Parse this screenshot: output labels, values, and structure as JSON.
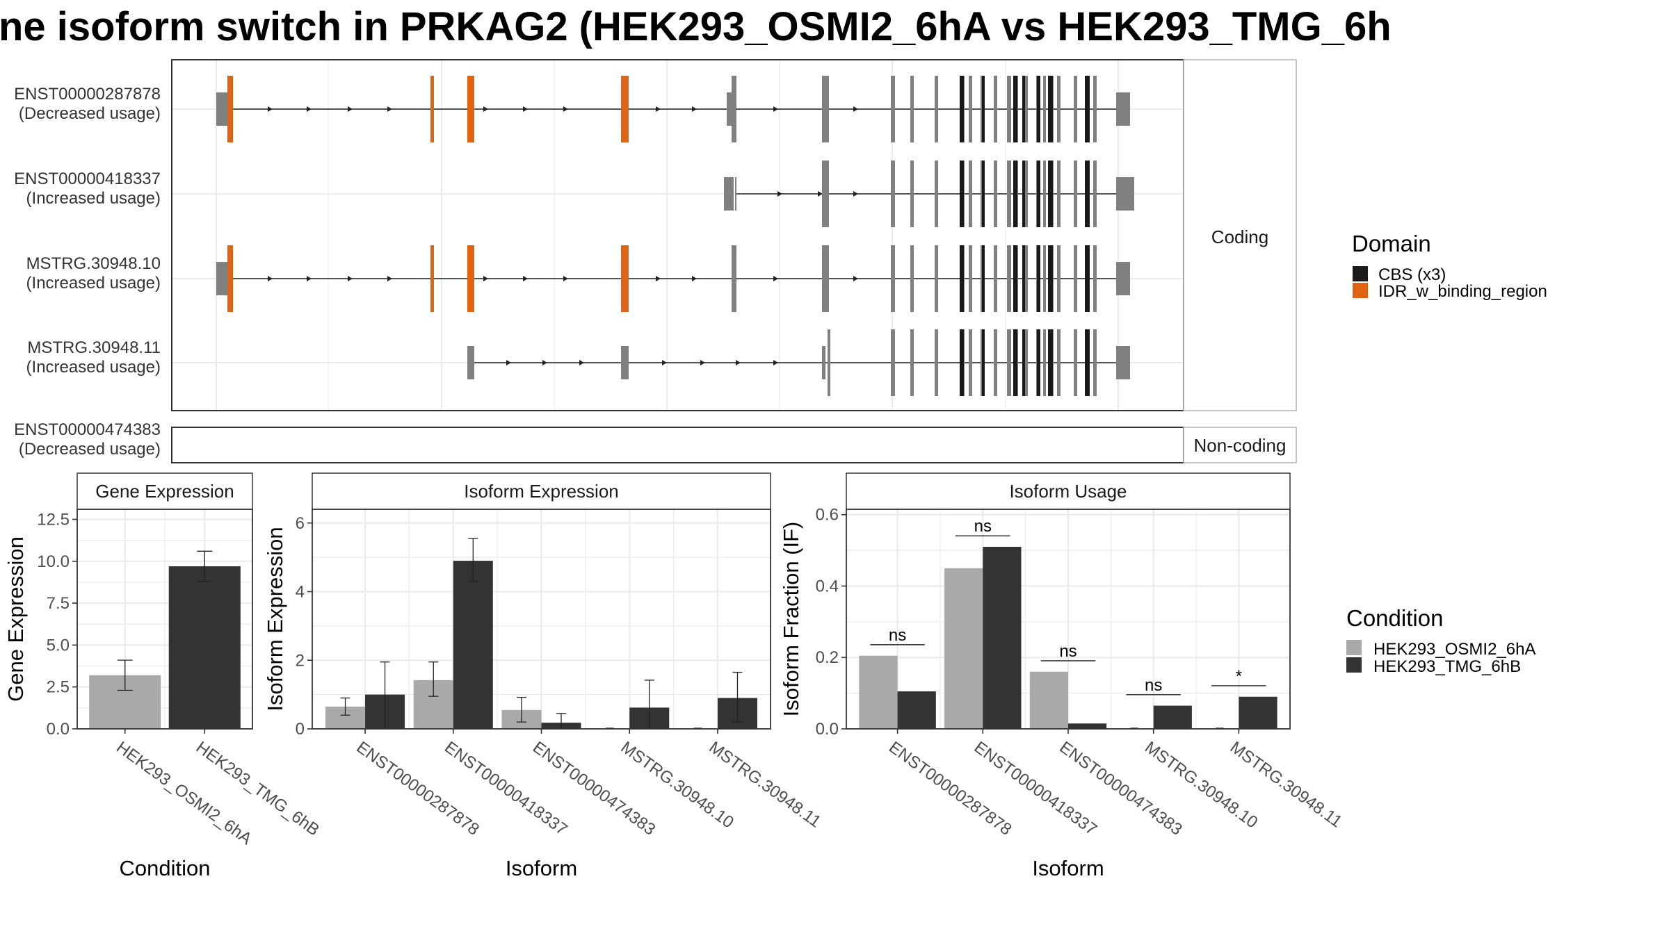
{
  "title": "ne isoform switch in PRKAG2 (HEK293_OSMI2_6hA vs HEK293_TMG_6h",
  "colors": {
    "exon": "#808080",
    "cbs": "#1a1a1a",
    "idr": "#e06311",
    "cond1": "#a9a9a9",
    "cond2": "#333333",
    "grid": "#ebebeb",
    "frame": "#333333"
  },
  "structure": {
    "strip_coding": "Coding",
    "strip_noncoding": "Non-coding",
    "transcripts": [
      {
        "id": "ENST00000287878",
        "usage": "(Decreased usage)",
        "group": "coding"
      },
      {
        "id": "ENST00000418337",
        "usage": "(Increased usage)",
        "group": "coding"
      },
      {
        "id": "MSTRG.30948.10",
        "usage": "(Increased usage)",
        "group": "coding"
      },
      {
        "id": "MSTRG.30948.11",
        "usage": "(Increased usage)",
        "group": "coding"
      },
      {
        "id": "ENST00000474383",
        "usage": "(Decreased usage)",
        "group": "noncoding"
      }
    ]
  },
  "domain_legend": {
    "title": "Domain",
    "items": [
      {
        "label": "CBS (x3)",
        "color": "#1a1a1a"
      },
      {
        "label": "IDR_w_binding_region",
        "color": "#e06311"
      }
    ]
  },
  "condition_legend": {
    "title": "Condition",
    "items": [
      {
        "label": "HEK293_OSMI2_6hA",
        "color": "#a9a9a9"
      },
      {
        "label": "HEK293_TMG_6hB",
        "color": "#333333"
      }
    ]
  },
  "chart_data": [
    {
      "type": "bar",
      "title": "Gene Expression",
      "xlabel": "Condition",
      "ylabel": "Gene Expression",
      "ylim": [
        0,
        13.1
      ],
      "yticks": [
        "0.0",
        "2.5",
        "5.0",
        "7.5",
        "10.0",
        "12.5"
      ],
      "categories": [
        "HEK293_OSMI2_6hA",
        "HEK293_TMG_6hB"
      ],
      "values": [
        3.2,
        9.7
      ],
      "error_low": [
        2.3,
        8.8
      ],
      "error_high": [
        4.1,
        10.6
      ]
    },
    {
      "type": "bar",
      "title": "Isoform Expression",
      "xlabel": "Isoform",
      "ylabel": "Isoform Expression",
      "ylim": [
        0,
        6.4
      ],
      "yticks": [
        "0",
        "2",
        "4",
        "6"
      ],
      "categories": [
        "ENST00000287878",
        "ENST00000418337",
        "ENST00000474383",
        "MSTRG.30948.10",
        "MSTRG.30948.11"
      ],
      "series": [
        {
          "name": "HEK293_OSMI2_6hA",
          "values": [
            0.65,
            1.42,
            0.55,
            0.0,
            0.0
          ],
          "error_low": [
            0.4,
            0.95,
            0.2,
            0.0,
            0.0
          ],
          "error_high": [
            0.9,
            1.95,
            0.92,
            0.0,
            0.0
          ]
        },
        {
          "name": "HEK293_TMG_6hB",
          "values": [
            1.0,
            4.9,
            0.18,
            0.62,
            0.9
          ],
          "error_low": [
            0.0,
            4.3,
            0.0,
            0.0,
            0.2
          ],
          "error_high": [
            1.95,
            5.55,
            0.45,
            1.42,
            1.65
          ]
        }
      ]
    },
    {
      "type": "bar",
      "title": "Isoform Usage",
      "xlabel": "Isoform",
      "ylabel": "Isoform Fraction (IF)",
      "ylim": [
        0,
        0.615
      ],
      "yticks": [
        "0.0",
        "0.2",
        "0.4",
        "0.6"
      ],
      "categories": [
        "ENST00000287878",
        "ENST00000418337",
        "ENST00000474383",
        "MSTRG.30948.10",
        "MSTRG.30948.11"
      ],
      "series": [
        {
          "name": "HEK293_OSMI2_6hA",
          "values": [
            0.205,
            0.45,
            0.16,
            0.0,
            0.0
          ]
        },
        {
          "name": "HEK293_TMG_6hB",
          "values": [
            0.105,
            0.51,
            0.015,
            0.065,
            0.09
          ]
        }
      ],
      "significance": [
        "ns",
        "ns",
        "ns",
        "ns",
        "*"
      ]
    }
  ]
}
